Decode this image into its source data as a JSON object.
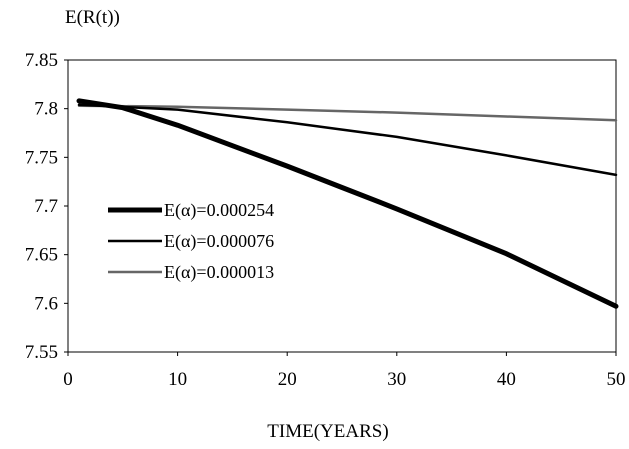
{
  "chart_data": {
    "type": "line",
    "title": "E(R(t))",
    "xlabel": "TIME(YEARS)",
    "ylabel": "",
    "xlim": [
      0,
      50
    ],
    "ylim": [
      7.55,
      7.85
    ],
    "x_ticks": [
      "0",
      "10",
      "20",
      "30",
      "40",
      "50"
    ],
    "y_ticks": [
      "7.55",
      "7.6",
      "7.65",
      "7.7",
      "7.75",
      "7.8",
      "7.85"
    ],
    "grid": false,
    "legend_position": "left-center",
    "series": [
      {
        "name": "E(α)=0.000254",
        "color": "#000000",
        "style": "thick",
        "x": [
          1,
          5,
          10,
          15,
          20,
          25,
          30,
          35,
          40,
          45,
          50
        ],
        "y": [
          7.808,
          7.801,
          7.783,
          7.762,
          7.741,
          7.719,
          7.697,
          7.674,
          7.651,
          7.624,
          7.597
        ]
      },
      {
        "name": "E(α)=0.000076",
        "color": "#000000",
        "style": "medium",
        "x": [
          1,
          10,
          20,
          30,
          40,
          50
        ],
        "y": [
          7.804,
          7.799,
          7.786,
          7.771,
          7.752,
          7.732
        ]
      },
      {
        "name": "E(α)=0.000013",
        "color": "#666666",
        "style": "medium",
        "x": [
          1,
          10,
          20,
          30,
          40,
          50
        ],
        "y": [
          7.803,
          7.802,
          7.799,
          7.796,
          7.792,
          7.788
        ]
      }
    ]
  }
}
